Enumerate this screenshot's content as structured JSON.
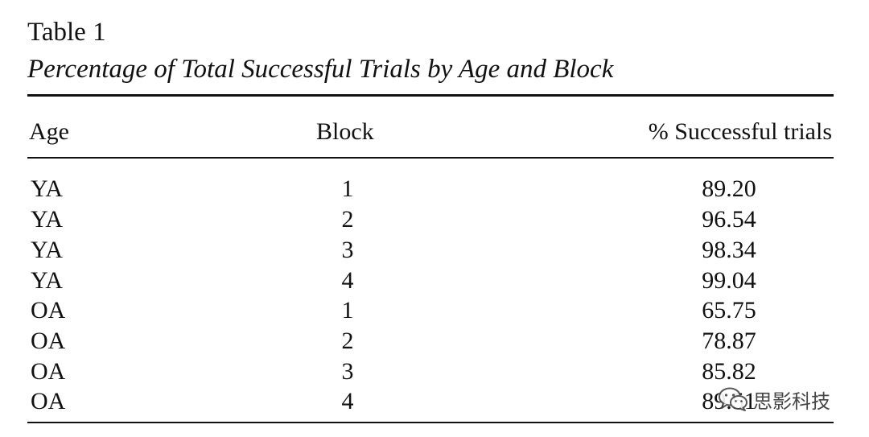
{
  "table": {
    "label": "Table 1",
    "title": "Percentage of Total Successful Trials by Age and Block",
    "columns": [
      "Age",
      "Block",
      "% Successful trials"
    ],
    "rows": [
      {
        "age": "YA",
        "block": "1",
        "pct": "89.20"
      },
      {
        "age": "YA",
        "block": "2",
        "pct": "96.54"
      },
      {
        "age": "YA",
        "block": "3",
        "pct": "98.34"
      },
      {
        "age": "YA",
        "block": "4",
        "pct": "99.04"
      },
      {
        "age": "OA",
        "block": "1",
        "pct": "65.75"
      },
      {
        "age": "OA",
        "block": "2",
        "pct": "78.87"
      },
      {
        "age": "OA",
        "block": "3",
        "pct": "85.82"
      },
      {
        "age": "OA",
        "block": "4",
        "pct": "89.51"
      }
    ]
  },
  "watermark": {
    "text": "思影科技",
    "icon": "wechat-icon"
  }
}
